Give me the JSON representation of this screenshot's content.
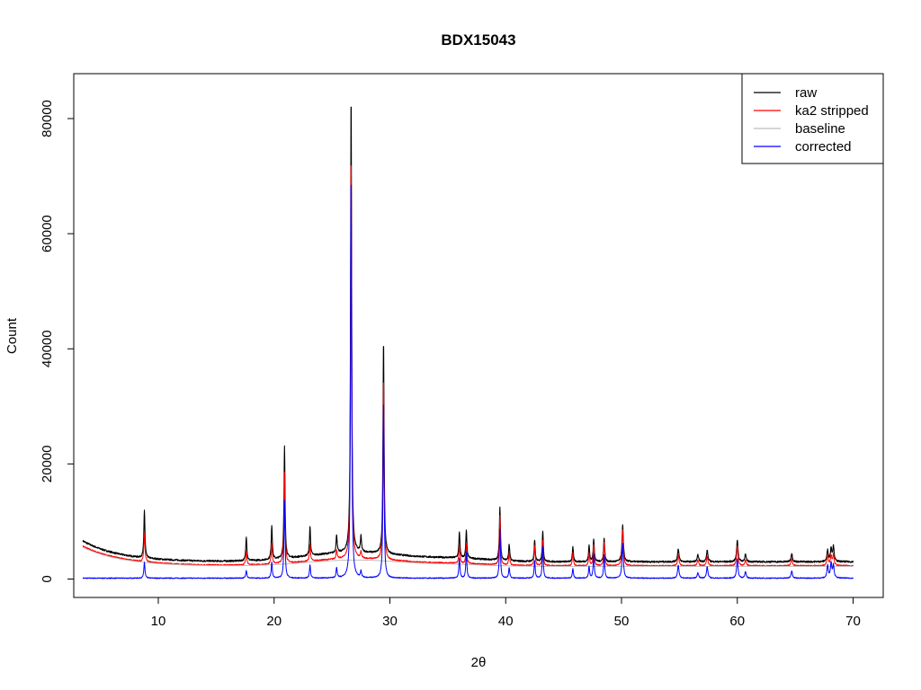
{
  "chart_data": {
    "type": "line",
    "title": "BDX15043",
    "xlabel": "2θ",
    "ylabel": "Count",
    "xlim": [
      2.7,
      72.6
    ],
    "ylim": [
      -3200,
      87800
    ],
    "x_ticks": [
      10,
      20,
      30,
      40,
      50,
      60,
      70
    ],
    "y_ticks": [
      0,
      20000,
      40000,
      60000,
      80000
    ],
    "x_tick_labels": [
      "10",
      "20",
      "30",
      "40",
      "50",
      "60",
      "70"
    ],
    "y_tick_labels": [
      "0",
      "20000",
      "40000",
      "60000",
      "80000"
    ],
    "grid": false,
    "legend_position": "top-right",
    "legend": [
      {
        "label": "raw",
        "color": "#000000"
      },
      {
        "label": "ka2 stripped",
        "color": "#ff0000"
      },
      {
        "label": "baseline",
        "color": "#bebebe"
      },
      {
        "label": "corrected",
        "color": "#0000ff"
      }
    ],
    "x_range": [
      3.5,
      70
    ],
    "peaks": [
      {
        "x": 8.8,
        "raw": 12000,
        "stripped": 8000,
        "corrected": 2800
      },
      {
        "x": 17.6,
        "raw": 7400,
        "stripped": 5000,
        "corrected": 1400
      },
      {
        "x": 19.8,
        "raw": 9300,
        "stripped": 6200,
        "corrected": 2800
      },
      {
        "x": 20.9,
        "raw": 23000,
        "stripped": 18500,
        "corrected": 13500
      },
      {
        "x": 23.1,
        "raw": 9100,
        "stripped": 6000,
        "corrected": 2300
      },
      {
        "x": 25.4,
        "raw": 7600,
        "stripped": 5000,
        "corrected": 1800
      },
      {
        "x": 26.65,
        "raw": 84500,
        "stripped": 74000,
        "corrected": 70500
      },
      {
        "x": 27.5,
        "raw": 7300,
        "stripped": 4600,
        "corrected": 1100
      },
      {
        "x": 29.45,
        "raw": 41500,
        "stripped": 35000,
        "corrected": 31000
      },
      {
        "x": 36.0,
        "raw": 8200,
        "stripped": 5800,
        "corrected": 3500
      },
      {
        "x": 36.6,
        "raw": 8400,
        "stripped": 6000,
        "corrected": 4500
      },
      {
        "x": 39.5,
        "raw": 12500,
        "stripped": 11000,
        "corrected": 8500
      },
      {
        "x": 40.3,
        "raw": 6000,
        "stripped": 4500,
        "corrected": 1800
      },
      {
        "x": 42.5,
        "raw": 6700,
        "stripped": 5800,
        "corrected": 3000
      },
      {
        "x": 43.2,
        "raw": 8400,
        "stripped": 6800,
        "corrected": 5500
      },
      {
        "x": 45.8,
        "raw": 5500,
        "stripped": 4500,
        "corrected": 1600
      },
      {
        "x": 47.2,
        "raw": 5800,
        "stripped": 4500,
        "corrected": 2000
      },
      {
        "x": 47.6,
        "raw": 7000,
        "stripped": 6000,
        "corrected": 4300
      },
      {
        "x": 48.5,
        "raw": 7200,
        "stripped": 6500,
        "corrected": 4100
      },
      {
        "x": 50.1,
        "raw": 9300,
        "stripped": 8500,
        "corrected": 6000
      },
      {
        "x": 54.9,
        "raw": 5300,
        "stripped": 4200,
        "corrected": 2300
      },
      {
        "x": 56.6,
        "raw": 4200,
        "stripped": 3300,
        "corrected": 900
      },
      {
        "x": 57.4,
        "raw": 5000,
        "stripped": 4000,
        "corrected": 2000
      },
      {
        "x": 60.0,
        "raw": 6800,
        "stripped": 5800,
        "corrected": 3400
      },
      {
        "x": 60.7,
        "raw": 4300,
        "stripped": 3300,
        "corrected": 1100
      },
      {
        "x": 64.7,
        "raw": 4500,
        "stripped": 3600,
        "corrected": 1300
      },
      {
        "x": 67.8,
        "raw": 5000,
        "stripped": 4200,
        "corrected": 2200
      },
      {
        "x": 68.1,
        "raw": 5300,
        "stripped": 4000,
        "corrected": 2600
      },
      {
        "x": 68.3,
        "raw": 5600,
        "stripped": 4200,
        "corrected": 2200
      }
    ]
  }
}
